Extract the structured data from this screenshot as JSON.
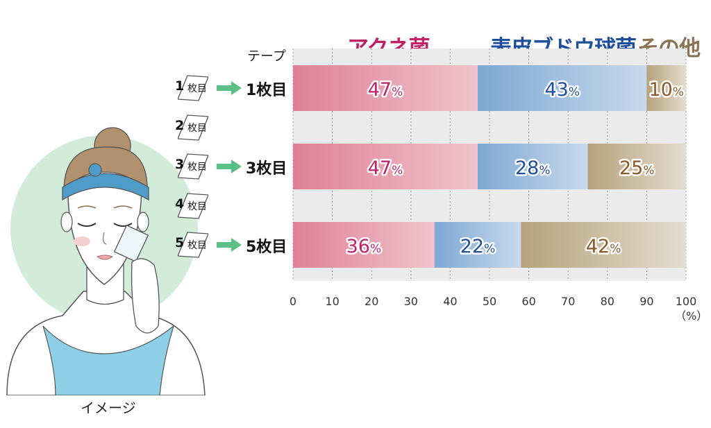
{
  "legend": {
    "acne": "アクネ菌",
    "staph": "表皮ブドウ球菌",
    "other": "その他"
  },
  "axis": {
    "tape_label": "テープ",
    "unit_label": "（%）"
  },
  "illustration": {
    "caption": "イメージ"
  },
  "tape_suffix": "枚目",
  "tapes": [
    {
      "num": "1",
      "arrow": true
    },
    {
      "num": "2",
      "arrow": false
    },
    {
      "num": "3",
      "arrow": true
    },
    {
      "num": "4",
      "arrow": false
    },
    {
      "num": "5",
      "arrow": true
    }
  ],
  "colors": {
    "acne_start": "#de8196",
    "acne_end": "#f1c3cd",
    "staph_start": "#7ea9d4",
    "staph_end": "#c7d9ec",
    "other_start": "#b7a37c",
    "other_end": "#e4dccd",
    "acne_text": "#c0226a",
    "staph_text": "#1f4f9c",
    "other_text": "#8a5a2b",
    "arrow": "#5bbf88",
    "plot_bg": "#ebebeb",
    "face_circle": "#d3ecd9"
  },
  "chart_data": {
    "type": "bar",
    "orientation": "horizontal",
    "stacked": true,
    "categories": [
      "1枚目",
      "3枚目",
      "5枚目"
    ],
    "series": [
      {
        "name": "アクネ菌",
        "values": [
          47,
          47,
          36
        ]
      },
      {
        "name": "表皮ブドウ球菌",
        "values": [
          43,
          28,
          22
        ]
      },
      {
        "name": "その他",
        "values": [
          10,
          25,
          42
        ]
      }
    ],
    "value_suffix": "%",
    "xlim": [
      0,
      100
    ],
    "xticks": [
      "0",
      "10",
      "20",
      "30",
      "40",
      "50",
      "60",
      "70",
      "80",
      "90",
      "100"
    ],
    "grid": true,
    "legend_position": "top"
  }
}
